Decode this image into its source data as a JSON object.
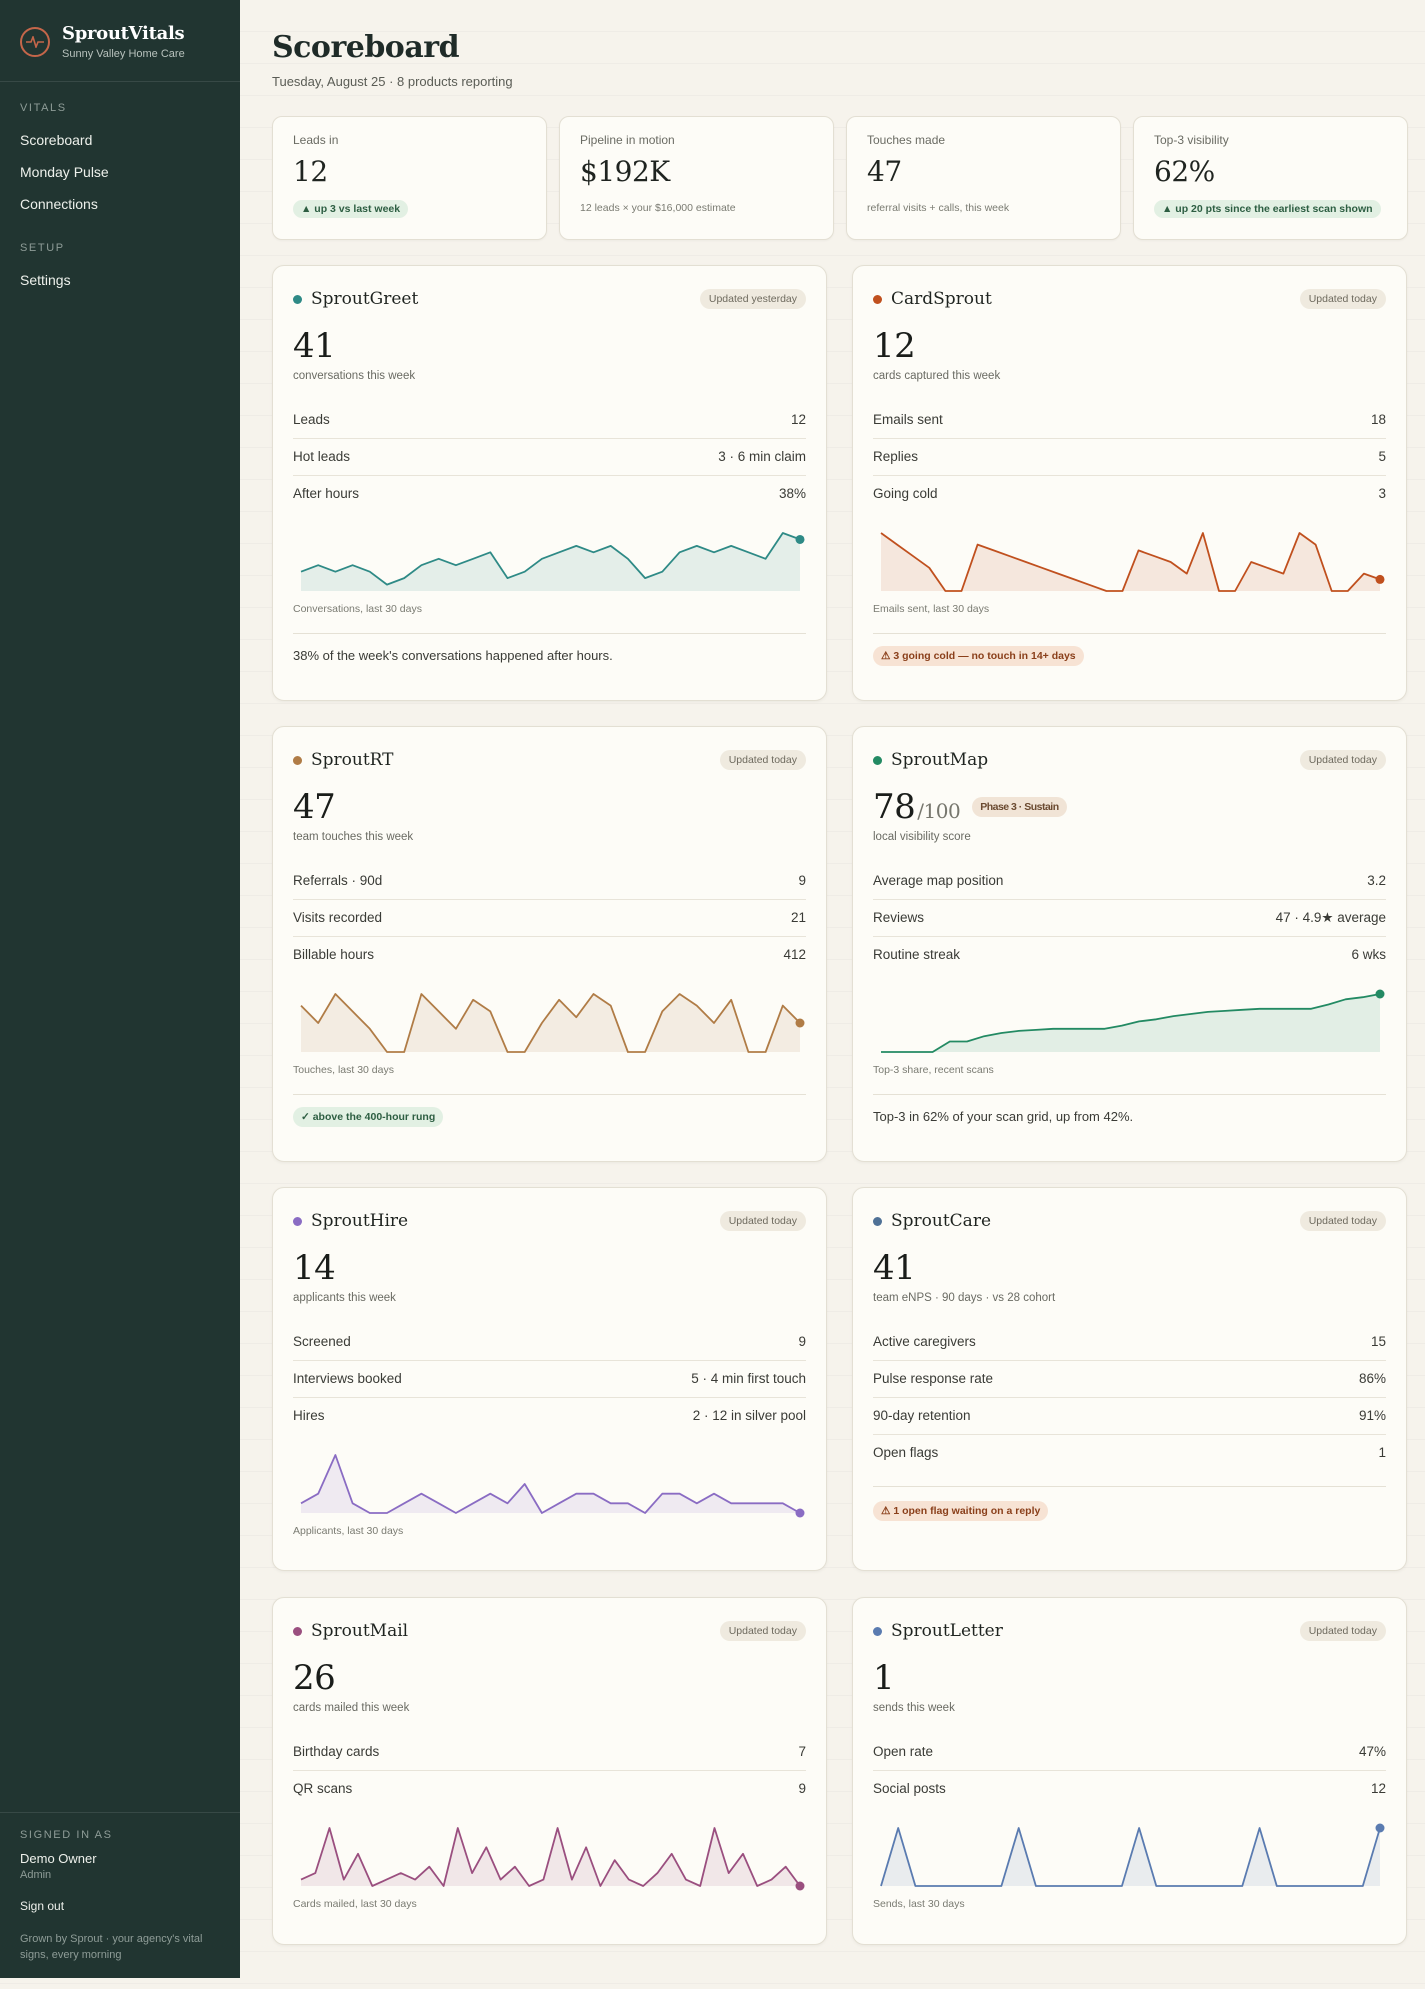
{
  "app": {
    "name": "SproutVitals",
    "agency": "Sunny Valley Home Care"
  },
  "nav": {
    "sections": [
      {
        "label": "VITALS",
        "items": [
          "Scoreboard",
          "Monday Pulse",
          "Connections"
        ]
      },
      {
        "label": "SETUP",
        "items": [
          "Settings"
        ]
      }
    ]
  },
  "footer": {
    "signed_in_label": "SIGNED IN AS",
    "user": "Demo Owner",
    "role": "Admin",
    "signout": "Sign out",
    "tagline": "Grown by Sprout · your agency's vital signs, every morning"
  },
  "header": {
    "title": "Scoreboard",
    "subtitle": "Tuesday, August 25 · 8 products reporting"
  },
  "kpis": [
    {
      "label": "Leads in",
      "value": "12",
      "note": "▲ up 3 vs last week",
      "note_style": "pill"
    },
    {
      "label": "Pipeline in motion",
      "value": "$192K",
      "note": "12 leads × your $16,000 estimate",
      "note_style": "text"
    },
    {
      "label": "Touches made",
      "value": "47",
      "note": "referral visits + calls, this week",
      "note_style": "text"
    },
    {
      "label": "Top-3 visibility",
      "value": "62%",
      "note": "▲ up 20 pts since the earliest scan shown",
      "note_style": "pill"
    }
  ],
  "colors": {
    "greet": "#2e8a86",
    "card": "#c0501e",
    "rt": "#b07c46",
    "map": "#238a63",
    "hire": "#8a6cc3",
    "care": "#4f7196",
    "mail": "#9a4f7f",
    "letter": "#5a7bb0"
  },
  "products": {
    "greet": {
      "name": "SproutGreet",
      "updated": "Updated yesterday",
      "big": "41",
      "sub": "conversations this week",
      "rows": [
        {
          "label": "Leads",
          "value": "12"
        },
        {
          "label": "Hot leads",
          "value": "3 · 6 min claim"
        },
        {
          "label": "After hours",
          "value": "38%"
        }
      ],
      "spark_caption": "Conversations, last 30 days",
      "footer": "38% of the week's conversations happened after hours."
    },
    "card": {
      "name": "CardSprout",
      "updated": "Updated today",
      "big": "12",
      "sub": "cards captured this week",
      "rows": [
        {
          "label": "Emails sent",
          "value": "18"
        },
        {
          "label": "Replies",
          "value": "5"
        },
        {
          "label": "Going cold",
          "value": "3"
        }
      ],
      "spark_caption": "Emails sent, last 30 days",
      "footer": "⚠ 3 going cold — no touch in 14+ days"
    },
    "rt": {
      "name": "SproutRT",
      "updated": "Updated today",
      "big": "47",
      "sub": "team touches this week",
      "rows": [
        {
          "label": "Referrals · 90d",
          "value": "9"
        },
        {
          "label": "Visits recorded",
          "value": "21"
        },
        {
          "label": "Billable hours",
          "value": "412"
        }
      ],
      "spark_caption": "Touches, last 30 days",
      "footer": "✓ above the 400-hour rung"
    },
    "map": {
      "name": "SproutMap",
      "updated": "Updated today",
      "big": "78",
      "big_suffix": "/100",
      "phase": "Phase 3 · Sustain",
      "sub": "local visibility score",
      "rows": [
        {
          "label": "Average map position",
          "value": "3.2"
        },
        {
          "label": "Reviews",
          "value": "47 · 4.9★ average"
        },
        {
          "label": "Routine streak",
          "value": "6 wks"
        }
      ],
      "spark_caption": "Top-3 share, recent scans",
      "footer": "Top-3 in 62% of your scan grid, up from 42%."
    },
    "hire": {
      "name": "SproutHire",
      "updated": "Updated today",
      "big": "14",
      "sub": "applicants this week",
      "rows": [
        {
          "label": "Screened",
          "value": "9"
        },
        {
          "label": "Interviews booked",
          "value": "5 · 4 min first touch"
        },
        {
          "label": "Hires",
          "value": "2 · 12 in silver pool"
        }
      ],
      "spark_caption": "Applicants, last 30 days"
    },
    "care": {
      "name": "SproutCare",
      "updated": "Updated today",
      "big": "41",
      "sub": "team eNPS · 90 days · vs 28 cohort",
      "rows": [
        {
          "label": "Active caregivers",
          "value": "15"
        },
        {
          "label": "Pulse response rate",
          "value": "86%"
        },
        {
          "label": "90-day retention",
          "value": "91%"
        },
        {
          "label": "Open flags",
          "value": "1"
        }
      ],
      "footer": "⚠ 1 open flag waiting on a reply"
    },
    "mail": {
      "name": "SproutMail",
      "updated": "Updated today",
      "big": "26",
      "sub": "cards mailed this week",
      "rows": [
        {
          "label": "Birthday cards",
          "value": "7"
        },
        {
          "label": "QR scans",
          "value": "9"
        }
      ],
      "spark_caption": "Cards mailed, last 30 days"
    },
    "letter": {
      "name": "SproutLetter",
      "updated": "Updated today",
      "big": "1",
      "sub": "sends this week",
      "rows": [
        {
          "label": "Open rate",
          "value": "47%"
        },
        {
          "label": "Social posts",
          "value": "12"
        }
      ],
      "spark_caption": "Sends, last 30 days"
    }
  },
  "chart_data": [
    {
      "type": "area",
      "id": "greet",
      "values": [
        3,
        4,
        3,
        4,
        3,
        1,
        2,
        4,
        5,
        4,
        5,
        6,
        2,
        3,
        5,
        6,
        7,
        6,
        7,
        5,
        2,
        3,
        6,
        7,
        6,
        7,
        6,
        5,
        9,
        8
      ]
    },
    {
      "type": "area",
      "id": "card",
      "values": [
        10,
        8,
        6,
        4,
        0,
        0,
        8,
        7,
        6,
        5,
        4,
        3,
        2,
        1,
        0,
        0,
        7,
        6,
        5,
        3,
        10,
        0,
        0,
        5,
        4,
        3,
        10,
        8,
        0,
        0,
        3,
        2
      ]
    },
    {
      "type": "area",
      "id": "rt",
      "values": [
        8,
        5,
        10,
        7,
        4,
        0,
        0,
        10,
        7,
        4,
        9,
        7,
        0,
        0,
        5,
        9,
        6,
        10,
        8,
        0,
        0,
        7,
        10,
        8,
        5,
        9,
        0,
        0,
        8,
        5
      ]
    },
    {
      "type": "line",
      "id": "map",
      "values": [
        0,
        0,
        0,
        0,
        1,
        1,
        1.5,
        1.8,
        2,
        2.1,
        2.2,
        2.2,
        2.2,
        2.2,
        2.5,
        2.9,
        3.1,
        3.4,
        3.6,
        3.8,
        3.9,
        4,
        4.1,
        4.1,
        4.1,
        4.1,
        4.5,
        5,
        5.2,
        5.5
      ]
    },
    {
      "type": "area",
      "id": "hire",
      "values": [
        1,
        2,
        6,
        1,
        0,
        0,
        1,
        2,
        1,
        0,
        1,
        2,
        1,
        3,
        0,
        1,
        2,
        2,
        1,
        1,
        0,
        2,
        2,
        1,
        2,
        1,
        1,
        1,
        1,
        0
      ]
    },
    {
      "type": "area",
      "id": "mail",
      "values": [
        1,
        2,
        9,
        1,
        5,
        0,
        1,
        2,
        1,
        3,
        0,
        9,
        2,
        6,
        1,
        3,
        0,
        1,
        9,
        1,
        6,
        0,
        4,
        1,
        0,
        2,
        5,
        1,
        0,
        9,
        2,
        5,
        0,
        1,
        3,
        0
      ]
    },
    {
      "type": "area",
      "id": "letter",
      "values": [
        0,
        6,
        0,
        0,
        0,
        0,
        0,
        0,
        6,
        0,
        0,
        0,
        0,
        0,
        0,
        6,
        0,
        0,
        0,
        0,
        0,
        0,
        6,
        0,
        0,
        0,
        0,
        0,
        0,
        6
      ]
    }
  ]
}
